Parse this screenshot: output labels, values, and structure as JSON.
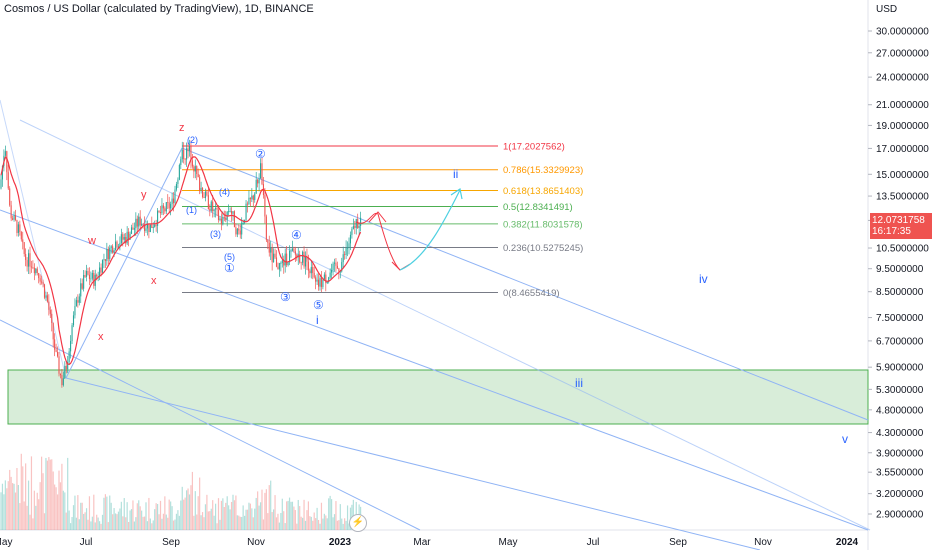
{
  "header": {
    "title": "Cosmos / US Dollar (calculated by TradingView), 1D, BINANCE",
    "currency": "USD"
  },
  "last_price": {
    "value": "12.0731758",
    "countdown": "16:17:35"
  },
  "chart_data": {
    "type": "candlestick",
    "title": "Cosmos / US Dollar (calculated by TradingView), 1D, BINANCE",
    "ylabel": "USD",
    "y_scale": "log",
    "ylim": [
      2.6,
      36
    ],
    "price_ticks": [
      "30.0000000",
      "27.0000000",
      "24.0000000",
      "21.0000000",
      "19.0000000",
      "17.0000000",
      "15.0000000",
      "13.5000000",
      "12.0000000",
      "10.5000000",
      "9.5000000",
      "8.5000000",
      "7.5000000",
      "6.7000000",
      "5.9000000",
      "5.3000000",
      "4.8000000",
      "4.3000000",
      "3.9000000",
      "3.5500000",
      "3.2000000",
      "2.9000000"
    ],
    "time_ticks": [
      "May",
      "Jul",
      "Sep",
      "Nov",
      "2023",
      "Mar",
      "May",
      "Jul",
      "Sep",
      "Nov",
      "2024"
    ],
    "fib_levels": [
      {
        "label": "1(17.2027562)",
        "value": 17.2027562,
        "color": "#f23645"
      },
      {
        "label": "0.786(15.3329923)",
        "value": 15.3329923,
        "color": "#ff9800"
      },
      {
        "label": "0.618(13.8651403)",
        "value": 13.8651403,
        "color": "#f7a600"
      },
      {
        "label": "0.5(12.8341491)",
        "value": 12.8341491,
        "color": "#4caf50"
      },
      {
        "label": "0.382(11.8031578)",
        "value": 11.8031578,
        "color": "#66bb6a"
      },
      {
        "label": "0.236(10.5275245)",
        "value": 10.5275245,
        "color": "#787b86"
      },
      {
        "label": "0(8.4655419)",
        "value": 8.4655419,
        "color": "#787b86"
      }
    ],
    "support_zone": {
      "low": 4.55,
      "high": 5.75,
      "color": "#c8e6c9"
    },
    "wave_labels": [
      {
        "text": "z",
        "color": "#f23645"
      },
      {
        "text": "y",
        "color": "#f23645"
      },
      {
        "text": "w",
        "color": "#f23645"
      },
      {
        "text": "x",
        "color": "#f23645"
      },
      {
        "text": "x",
        "color": "#f23645"
      },
      {
        "text": "(2)",
        "color": "#2962ff"
      },
      {
        "text": "(1)",
        "color": "#2962ff"
      },
      {
        "text": "(3)",
        "color": "#2962ff"
      },
      {
        "text": "(4)",
        "color": "#2962ff"
      },
      {
        "text": "(5)",
        "color": "#2962ff"
      },
      {
        "text": "①",
        "color": "#2962ff"
      },
      {
        "text": "②",
        "color": "#2962ff"
      },
      {
        "text": "③",
        "color": "#2962ff"
      },
      {
        "text": "④",
        "color": "#2962ff"
      },
      {
        "text": "⑤",
        "color": "#2962ff"
      },
      {
        "text": "i",
        "color": "#2962ff"
      },
      {
        "text": "ii",
        "color": "#2962ff"
      },
      {
        "text": "iii",
        "color": "#2962ff"
      },
      {
        "text": "iv",
        "color": "#2962ff"
      },
      {
        "text": "v",
        "color": "#2962ff"
      }
    ],
    "colors": {
      "up": "#26a69a",
      "down": "#ef5350",
      "ma": "#f23645",
      "channel": "#90b4f5",
      "projection": "#4dd0e1"
    }
  },
  "toolbar": {
    "flash_icon": "lightning-icon"
  }
}
